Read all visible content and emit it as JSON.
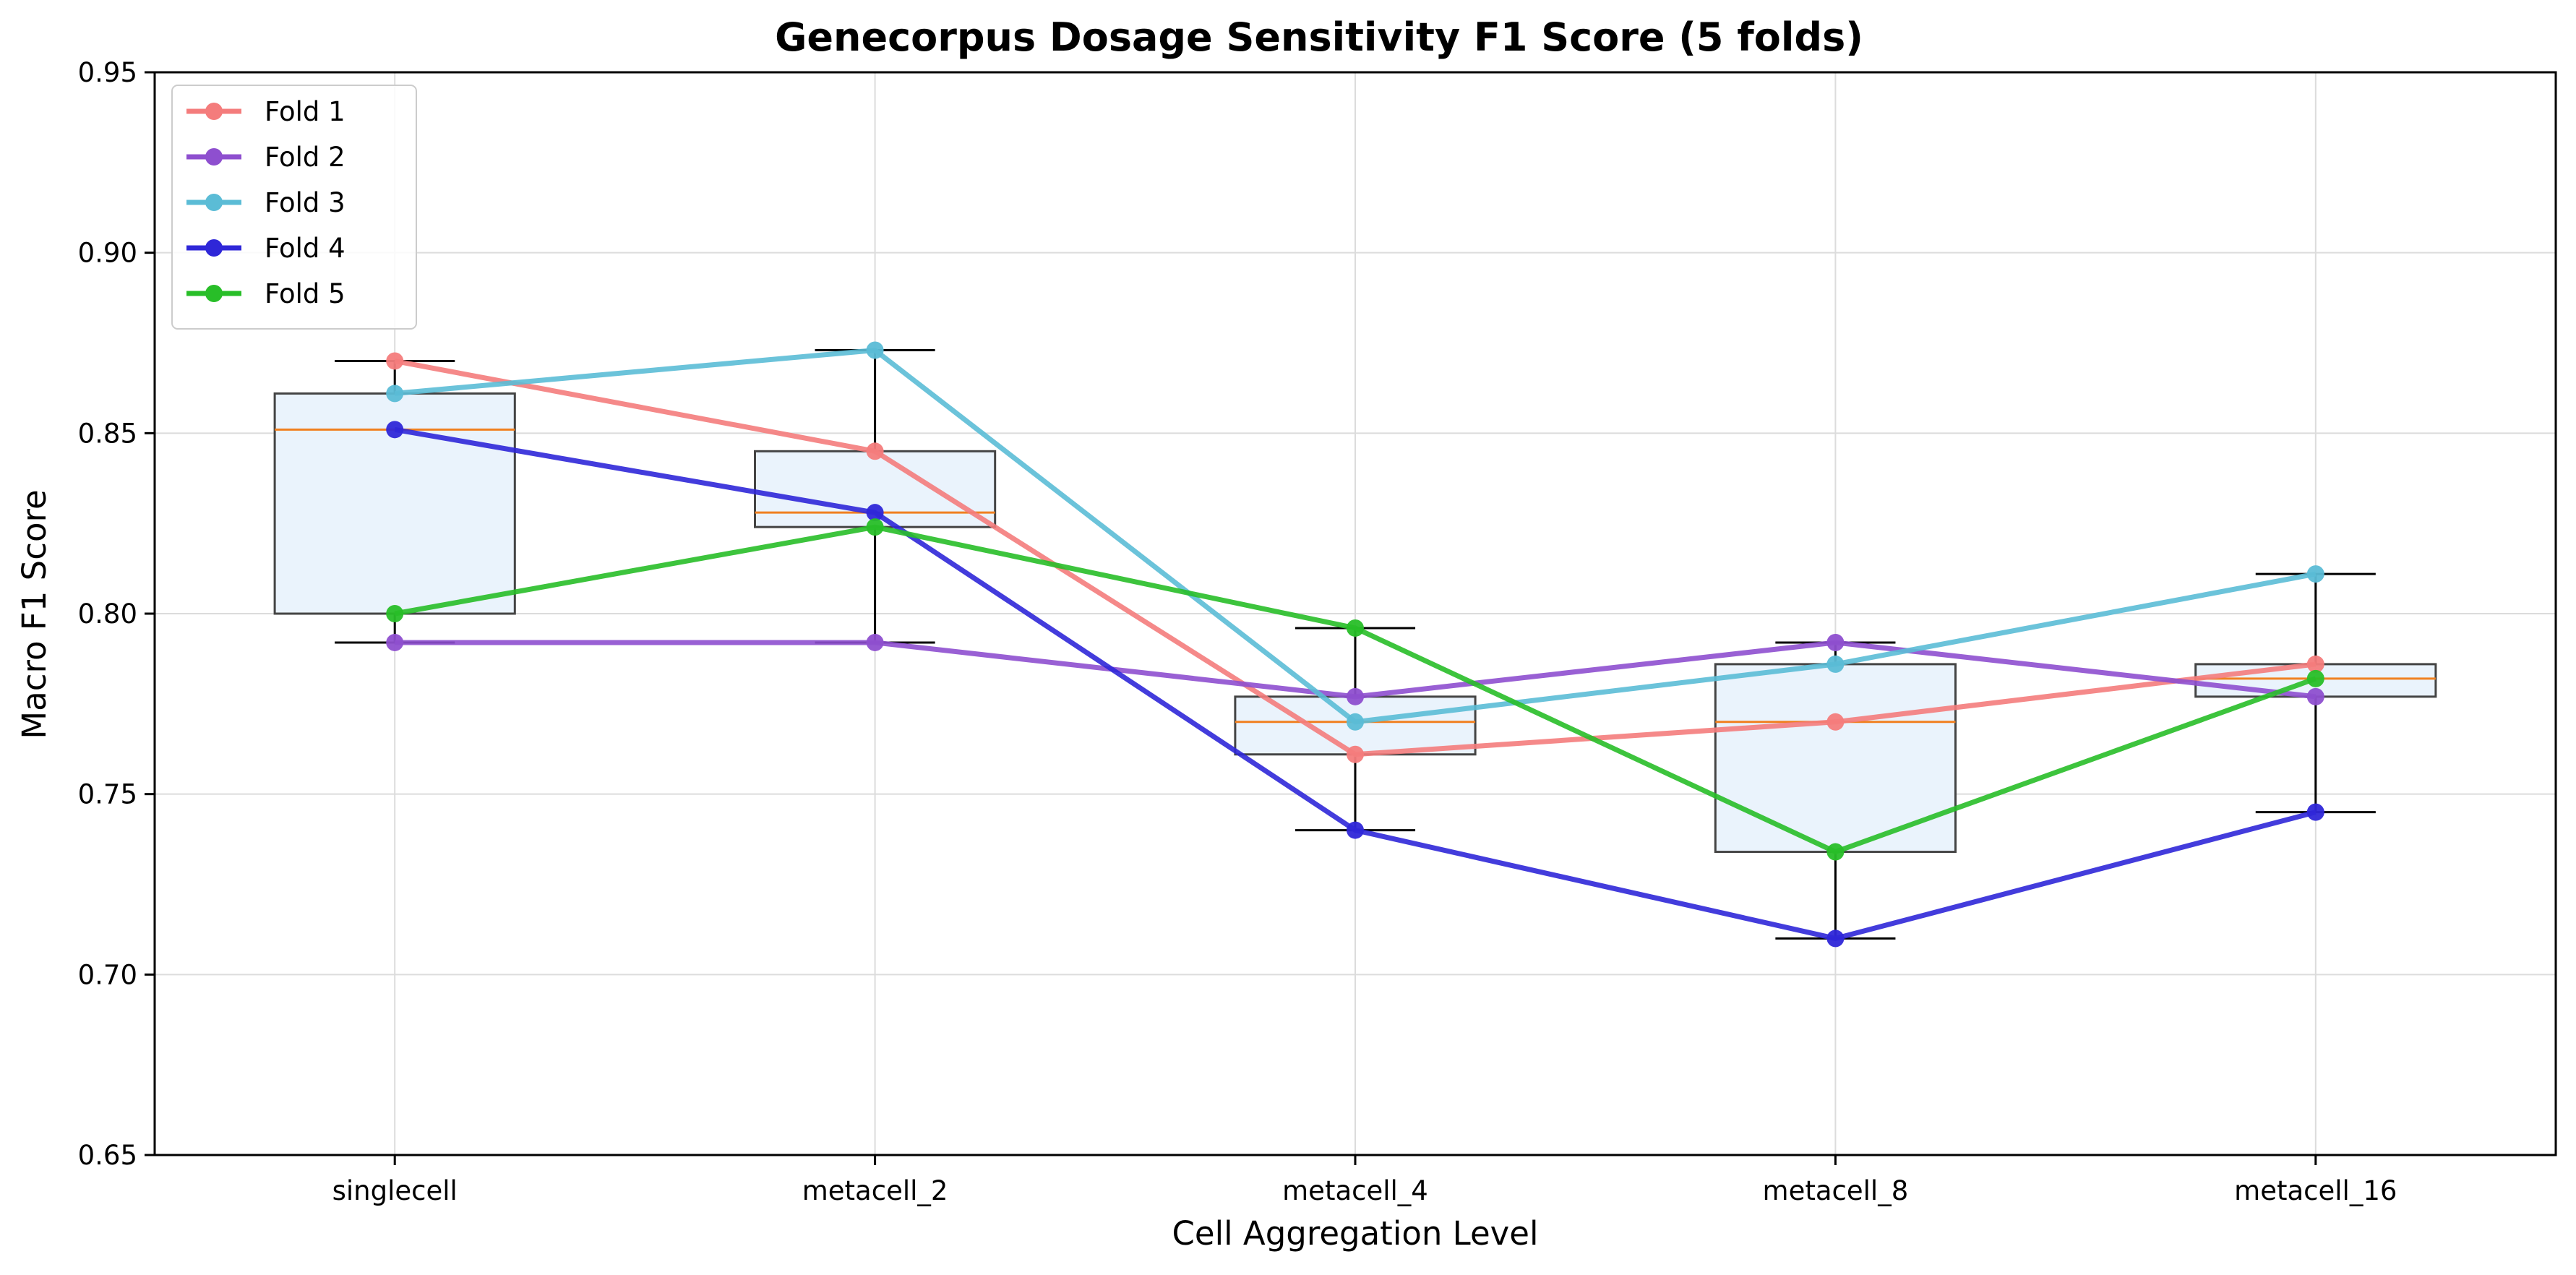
{
  "chart_data": {
    "type": "line",
    "title": "Genecorpus Dosage Sensitivity F1 Score (5 folds)",
    "xlabel": "Cell Aggregation Level",
    "ylabel": "Macro F1 Score",
    "categories": [
      "singlecell",
      "metacell_2",
      "metacell_4",
      "metacell_8",
      "metacell_16"
    ],
    "ylim": [
      0.65,
      0.95
    ],
    "yticks": [
      "0.65",
      "0.70",
      "0.75",
      "0.80",
      "0.85",
      "0.90",
      "0.95"
    ],
    "grid": true,
    "legend_position": "upper-left",
    "series": [
      {
        "name": "Fold 1",
        "color": "#F47C7C",
        "values": [
          0.87,
          0.845,
          0.761,
          0.77,
          0.786
        ]
      },
      {
        "name": "Fold 2",
        "color": "#8E4FCF",
        "values": [
          0.792,
          0.792,
          0.777,
          0.792,
          0.777
        ]
      },
      {
        "name": "Fold 3",
        "color": "#5BBCD6",
        "values": [
          0.861,
          0.873,
          0.77,
          0.786,
          0.811
        ]
      },
      {
        "name": "Fold 4",
        "color": "#2F27D8",
        "values": [
          0.851,
          0.828,
          0.74,
          0.71,
          0.745
        ]
      },
      {
        "name": "Fold 5",
        "color": "#28BE28",
        "values": [
          0.8,
          0.824,
          0.796,
          0.734,
          0.782
        ]
      }
    ],
    "boxplot": {
      "box_fill": "#EAF3FC",
      "box_edge": "#444444",
      "median_color": "#F08020",
      "boxes": [
        {
          "category": "singlecell",
          "whisker_low": 0.792,
          "q1": 0.8,
          "median": 0.851,
          "q3": 0.861,
          "whisker_high": 0.87
        },
        {
          "category": "metacell_2",
          "whisker_low": 0.792,
          "q1": 0.824,
          "median": 0.828,
          "q3": 0.845,
          "whisker_high": 0.873
        },
        {
          "category": "metacell_4",
          "whisker_low": 0.74,
          "q1": 0.761,
          "median": 0.77,
          "q3": 0.777,
          "whisker_high": 0.796
        },
        {
          "category": "metacell_8",
          "whisker_low": 0.71,
          "q1": 0.734,
          "median": 0.77,
          "q3": 0.786,
          "whisker_high": 0.792
        },
        {
          "category": "metacell_16",
          "whisker_low": 0.745,
          "q1": 0.777,
          "median": 0.782,
          "q3": 0.786,
          "whisker_high": 0.811
        }
      ]
    }
  }
}
